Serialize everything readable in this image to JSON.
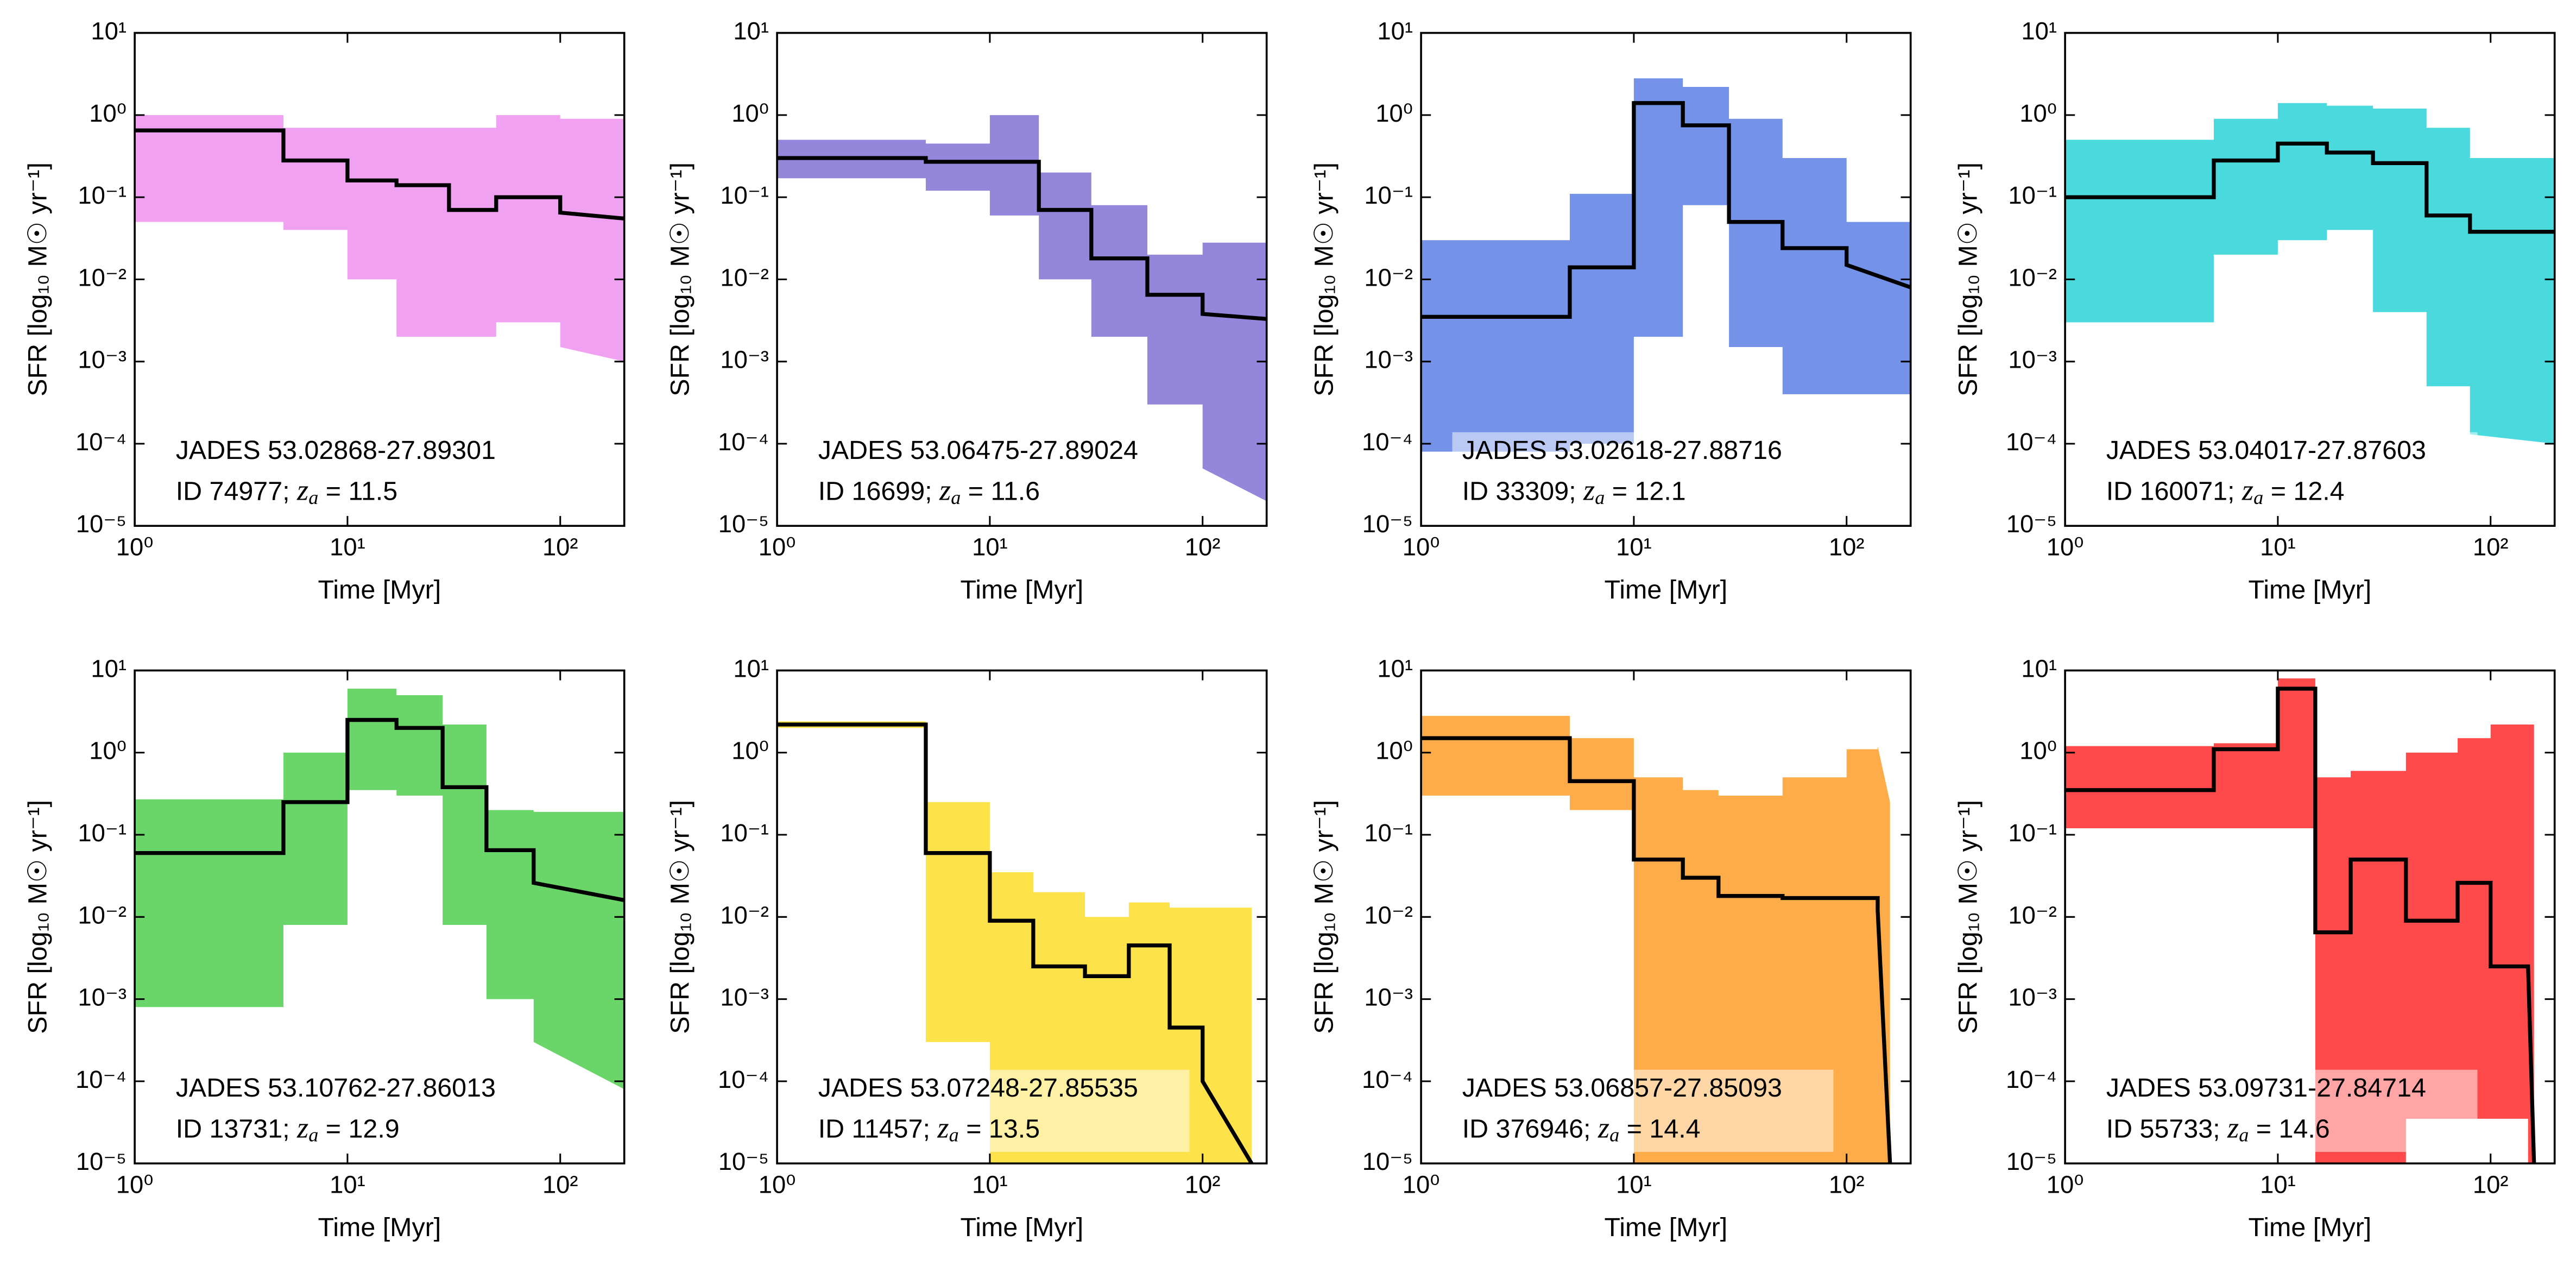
{
  "redshift_symbol": "z",
  "redshift_subscript": "a",
  "redshift_sign": " = ",
  "chart_data": [
    {
      "type": "line",
      "color": "#f09cf0",
      "annotation": [
        "JADES 53.02868-27.89301",
        "ID 74977; "
      ],
      "redshift": 11.5,
      "xlabel": "Time [Myr]",
      "ylabel": "SFR [log₁₀ M☉ yr⁻¹]",
      "log_x": true,
      "log_y": true,
      "xlim": [
        1,
        200
      ],
      "ylim": [
        1e-05,
        10
      ],
      "xticks": [
        {
          "value": 1,
          "label": "10⁰"
        },
        {
          "value": 10,
          "label": "10¹"
        },
        {
          "value": 100,
          "label": "10²"
        }
      ],
      "yticks": [
        {
          "value": 1e-05,
          "label": "10⁻⁵"
        },
        {
          "value": 0.0001,
          "label": "10⁻⁴"
        },
        {
          "value": 0.001,
          "label": "10⁻³"
        },
        {
          "value": 0.01,
          "label": "10⁻²"
        },
        {
          "value": 0.1,
          "label": "10⁻¹"
        },
        {
          "value": 1,
          "label": "10⁰"
        },
        {
          "value": 10,
          "label": "10¹"
        }
      ],
      "x": [
        1,
        5,
        5,
        10,
        10,
        17,
        17,
        30,
        30,
        50,
        50,
        100,
        100,
        200
      ],
      "values": [
        0.65,
        0.65,
        0.28,
        0.28,
        0.16,
        0.16,
        0.14,
        0.14,
        0.07,
        0.07,
        0.1,
        0.1,
        0.065,
        0.055
      ],
      "upper": [
        1,
        1,
        0.7,
        0.7,
        0.7,
        0.7,
        0.7,
        0.7,
        0.7,
        0.7,
        1,
        1,
        0.9,
        0.9
      ],
      "lower": [
        0.05,
        0.05,
        0.04,
        0.04,
        0.01,
        0.01,
        0.002,
        0.002,
        0.002,
        0.002,
        0.003,
        0.003,
        0.0015,
        0.001
      ]
    },
    {
      "type": "line",
      "color": "#8e7fd8",
      "annotation": [
        "JADES 53.06475-27.89024",
        "ID 16699; "
      ],
      "redshift": 11.6,
      "xlabel": "Time [Myr]",
      "ylabel": "SFR [log₁₀ M☉ yr⁻¹]",
      "log_x": true,
      "log_y": true,
      "xlim": [
        1,
        200
      ],
      "ylim": [
        1e-05,
        10
      ],
      "xticks": [
        {
          "value": 1,
          "label": "10⁰"
        },
        {
          "value": 10,
          "label": "10¹"
        },
        {
          "value": 100,
          "label": "10²"
        }
      ],
      "yticks": [
        {
          "value": 1e-05,
          "label": "10⁻⁵"
        },
        {
          "value": 0.0001,
          "label": "10⁻⁴"
        },
        {
          "value": 0.001,
          "label": "10⁻³"
        },
        {
          "value": 0.01,
          "label": "10⁻²"
        },
        {
          "value": 0.1,
          "label": "10⁻¹"
        },
        {
          "value": 1,
          "label": "10⁰"
        },
        {
          "value": 10,
          "label": "10¹"
        }
      ],
      "x": [
        1,
        5,
        5,
        10,
        10,
        17,
        17,
        30,
        30,
        55,
        55,
        100,
        100,
        200
      ],
      "values": [
        0.3,
        0.3,
        0.27,
        0.27,
        0.27,
        0.27,
        0.07,
        0.07,
        0.018,
        0.018,
        0.0065,
        0.0065,
        0.0038,
        0.0033
      ],
      "upper": [
        0.5,
        0.5,
        0.45,
        0.45,
        1,
        1,
        0.2,
        0.2,
        0.08,
        0.08,
        0.02,
        0.02,
        0.028,
        0.028
      ],
      "lower": [
        0.17,
        0.17,
        0.12,
        0.12,
        0.06,
        0.06,
        0.01,
        0.01,
        0.002,
        0.002,
        0.0003,
        0.0003,
        5e-05,
        2e-05
      ]
    },
    {
      "type": "line",
      "color": "#6d8ce6",
      "annotation": [
        "JADES 53.02618-27.88716",
        "ID 33309; "
      ],
      "redshift": 12.1,
      "xlabel": "Time [Myr]",
      "ylabel": "SFR [log₁₀ M☉ yr⁻¹]",
      "log_x": true,
      "log_y": true,
      "xlim": [
        1,
        200
      ],
      "ylim": [
        1e-05,
        10
      ],
      "xticks": [
        {
          "value": 1,
          "label": "10⁰"
        },
        {
          "value": 10,
          "label": "10¹"
        },
        {
          "value": 100,
          "label": "10²"
        }
      ],
      "yticks": [
        {
          "value": 1e-05,
          "label": "10⁻⁵"
        },
        {
          "value": 0.0001,
          "label": "10⁻⁴"
        },
        {
          "value": 0.001,
          "label": "10⁻³"
        },
        {
          "value": 0.01,
          "label": "10⁻²"
        },
        {
          "value": 0.1,
          "label": "10⁻¹"
        },
        {
          "value": 1,
          "label": "10⁰"
        },
        {
          "value": 10,
          "label": "10¹"
        }
      ],
      "x": [
        1,
        5,
        5,
        10,
        10,
        17,
        17,
        28,
        28,
        50,
        50,
        100,
        100,
        200
      ],
      "values": [
        0.0035,
        0.0035,
        0.014,
        0.014,
        1.4,
        1.4,
        0.75,
        0.75,
        0.05,
        0.05,
        0.024,
        0.024,
        0.015,
        0.008
      ],
      "upper": [
        0.03,
        0.03,
        0.11,
        0.11,
        2.8,
        2.8,
        2.2,
        2.2,
        0.9,
        0.9,
        0.3,
        0.3,
        0.05,
        0.05
      ],
      "lower": [
        8e-05,
        8e-05,
        0.0001,
        0.0001,
        0.002,
        0.002,
        0.08,
        0.08,
        0.0015,
        0.0015,
        0.0004,
        0.0004,
        0.0004,
        0.0004
      ]
    },
    {
      "type": "line",
      "color": "#40d8dc",
      "annotation": [
        "JADES 53.04017-27.87603",
        "ID 160071; "
      ],
      "redshift": 12.4,
      "xlabel": "Time [Myr]",
      "ylabel": "SFR [log₁₀ M☉ yr⁻¹]",
      "log_x": true,
      "log_y": true,
      "xlim": [
        1,
        200
      ],
      "ylim": [
        1e-05,
        10
      ],
      "xticks": [
        {
          "value": 1,
          "label": "10⁰"
        },
        {
          "value": 10,
          "label": "10¹"
        },
        {
          "value": 100,
          "label": "10²"
        }
      ],
      "yticks": [
        {
          "value": 1e-05,
          "label": "10⁻⁵"
        },
        {
          "value": 0.0001,
          "label": "10⁻⁴"
        },
        {
          "value": 0.001,
          "label": "10⁻³"
        },
        {
          "value": 0.01,
          "label": "10⁻²"
        },
        {
          "value": 0.1,
          "label": "10⁻¹"
        },
        {
          "value": 1,
          "label": "10⁰"
        },
        {
          "value": 10,
          "label": "10¹"
        }
      ],
      "x": [
        1,
        5,
        5,
        10,
        10,
        17,
        17,
        28,
        28,
        50,
        50,
        80,
        80,
        200
      ],
      "values": [
        0.1,
        0.1,
        0.28,
        0.28,
        0.45,
        0.45,
        0.35,
        0.35,
        0.26,
        0.26,
        0.06,
        0.06,
        0.038,
        0.038
      ],
      "upper": [
        0.5,
        0.5,
        0.9,
        0.9,
        1.4,
        1.4,
        1.3,
        1.3,
        1.2,
        1.2,
        0.7,
        0.7,
        0.3,
        0.3
      ],
      "lower": [
        0.003,
        0.003,
        0.02,
        0.02,
        0.03,
        0.03,
        0.04,
        0.04,
        0.004,
        0.004,
        0.0005,
        0.0005,
        0.00013,
        0.0001
      ]
    },
    {
      "type": "line",
      "color": "#62d462",
      "annotation": [
        "JADES 53.10762-27.86013",
        "ID 13731; "
      ],
      "redshift": 12.9,
      "xlabel": "Time [Myr]",
      "ylabel": "SFR [log₁₀ M☉ yr⁻¹]",
      "log_x": true,
      "log_y": true,
      "xlim": [
        1,
        200
      ],
      "ylim": [
        1e-05,
        10
      ],
      "xticks": [
        {
          "value": 1,
          "label": "10⁰"
        },
        {
          "value": 10,
          "label": "10¹"
        },
        {
          "value": 100,
          "label": "10²"
        }
      ],
      "yticks": [
        {
          "value": 1e-05,
          "label": "10⁻⁵"
        },
        {
          "value": 0.0001,
          "label": "10⁻⁴"
        },
        {
          "value": 0.001,
          "label": "10⁻³"
        },
        {
          "value": 0.01,
          "label": "10⁻²"
        },
        {
          "value": 0.1,
          "label": "10⁻¹"
        },
        {
          "value": 1,
          "label": "10⁰"
        },
        {
          "value": 10,
          "label": "10¹"
        }
      ],
      "x": [
        1,
        5,
        5,
        10,
        10,
        17,
        17,
        28,
        28,
        45,
        45,
        75,
        75,
        200
      ],
      "values": [
        0.06,
        0.06,
        0.25,
        0.25,
        2.5,
        2.5,
        2,
        2,
        0.38,
        0.38,
        0.065,
        0.065,
        0.026,
        0.016
      ],
      "upper": [
        0.27,
        0.27,
        1,
        1,
        6,
        6,
        5,
        5,
        2.2,
        2.2,
        0.2,
        0.2,
        0.19,
        0.19
      ],
      "lower": [
        0.0008,
        0.0008,
        0.008,
        0.008,
        0.35,
        0.35,
        0.3,
        0.3,
        0.008,
        0.008,
        0.001,
        0.001,
        0.0003,
        8e-05
      ]
    },
    {
      "type": "line",
      "color": "#fde040",
      "annotation": [
        "JADES 53.07248-27.85535",
        "ID 11457; "
      ],
      "redshift": 13.5,
      "xlabel": "Time [Myr]",
      "ylabel": "SFR [log₁₀ M☉ yr⁻¹]",
      "log_x": true,
      "log_y": true,
      "xlim": [
        1,
        200
      ],
      "ylim": [
        1e-05,
        10
      ],
      "xticks": [
        {
          "value": 1,
          "label": "10⁰"
        },
        {
          "value": 10,
          "label": "10¹"
        },
        {
          "value": 100,
          "label": "10²"
        }
      ],
      "yticks": [
        {
          "value": 1e-05,
          "label": "10⁻⁵"
        },
        {
          "value": 0.0001,
          "label": "10⁻⁴"
        },
        {
          "value": 0.001,
          "label": "10⁻³"
        },
        {
          "value": 0.01,
          "label": "10⁻²"
        },
        {
          "value": 0.1,
          "label": "10⁻¹"
        },
        {
          "value": 1,
          "label": "10⁰"
        },
        {
          "value": 10,
          "label": "10¹"
        }
      ],
      "x": [
        1,
        5,
        5,
        10,
        10,
        16,
        16,
        28,
        28,
        45,
        45,
        70,
        70,
        100,
        100,
        170
      ],
      "values": [
        2.2,
        2.2,
        0.06,
        0.06,
        0.009,
        0.009,
        0.0025,
        0.0025,
        0.0019,
        0.0019,
        0.0045,
        0.0045,
        0.00045,
        0.00045,
        0.0001,
        1e-05
      ],
      "upper": [
        2.4,
        2.4,
        0.25,
        0.25,
        0.035,
        0.035,
        0.02,
        0.02,
        0.01,
        0.01,
        0.015,
        0.015,
        0.013,
        0.013,
        0.013,
        0.013
      ],
      "lower": [
        2,
        2,
        0.0003,
        0.0003,
        1e-05,
        1e-05,
        1e-05,
        1e-05,
        1e-05,
        1e-05,
        1e-05,
        1e-05,
        1e-05,
        1e-05,
        1e-05,
        1e-05
      ]
    },
    {
      "type": "line",
      "color": "#fea840",
      "annotation": [
        "JADES 53.06857-27.85093",
        "ID 376946; "
      ],
      "redshift": 14.4,
      "xlabel": "Time [Myr]",
      "ylabel": "SFR [log₁₀ M☉ yr⁻¹]",
      "log_x": true,
      "log_y": true,
      "xlim": [
        1,
        200
      ],
      "ylim": [
        1e-05,
        10
      ],
      "xticks": [
        {
          "value": 1,
          "label": "10⁰"
        },
        {
          "value": 10,
          "label": "10¹"
        },
        {
          "value": 100,
          "label": "10²"
        }
      ],
      "yticks": [
        {
          "value": 1e-05,
          "label": "10⁻⁵"
        },
        {
          "value": 0.0001,
          "label": "10⁻⁴"
        },
        {
          "value": 0.001,
          "label": "10⁻³"
        },
        {
          "value": 0.01,
          "label": "10⁻²"
        },
        {
          "value": 0.1,
          "label": "10⁻¹"
        },
        {
          "value": 1,
          "label": "10⁰"
        },
        {
          "value": 10,
          "label": "10¹"
        }
      ],
      "x": [
        1,
        5,
        5,
        10,
        10,
        17,
        17,
        25,
        25,
        50,
        50,
        100,
        100,
        140,
        140,
        160
      ],
      "values": [
        1.5,
        1.5,
        0.45,
        0.45,
        0.05,
        0.05,
        0.03,
        0.03,
        0.018,
        0.018,
        0.017,
        0.017,
        0.017,
        0.017,
        0.012,
        1e-05
      ],
      "upper": [
        2.8,
        2.8,
        1.5,
        1.5,
        0.5,
        0.5,
        0.35,
        0.35,
        0.3,
        0.3,
        0.5,
        0.5,
        1.1,
        1.1,
        1.2,
        0.25
      ],
      "lower": [
        0.3,
        0.3,
        0.2,
        0.2,
        1e-05,
        1e-05,
        1e-05,
        1e-05,
        1e-05,
        1e-05,
        1e-05,
        1e-05,
        1e-05,
        1e-05,
        1e-05,
        1e-05
      ]
    },
    {
      "type": "line",
      "color": "#fe4040",
      "annotation": [
        "JADES 53.09731-27.84714",
        "ID 55733; "
      ],
      "redshift": 14.6,
      "xlabel": "Time [Myr]",
      "ylabel": "SFR [log₁₀ M☉ yr⁻¹]",
      "log_x": true,
      "log_y": true,
      "xlim": [
        1,
        200
      ],
      "ylim": [
        1e-05,
        10
      ],
      "xticks": [
        {
          "value": 1,
          "label": "10⁰"
        },
        {
          "value": 10,
          "label": "10¹"
        },
        {
          "value": 100,
          "label": "10²"
        }
      ],
      "yticks": [
        {
          "value": 1e-05,
          "label": "10⁻⁵"
        },
        {
          "value": 0.0001,
          "label": "10⁻⁴"
        },
        {
          "value": 0.001,
          "label": "10⁻³"
        },
        {
          "value": 0.01,
          "label": "10⁻²"
        },
        {
          "value": 0.1,
          "label": "10⁻¹"
        },
        {
          "value": 1,
          "label": "10⁰"
        },
        {
          "value": 10,
          "label": "10¹"
        }
      ],
      "x": [
        1,
        5,
        5,
        10,
        10,
        15,
        15,
        22,
        22,
        40,
        40,
        70,
        70,
        100,
        100,
        150,
        150,
        160
      ],
      "values": [
        0.35,
        0.35,
        1.1,
        1.1,
        6,
        6,
        0.0065,
        0.0065,
        0.05,
        0.05,
        0.009,
        0.009,
        0.026,
        0.026,
        0.0025,
        0.0025,
        0.0025,
        1e-05
      ],
      "upper": [
        1.2,
        1.2,
        1.3,
        1.3,
        8,
        8,
        0.5,
        0.5,
        0.6,
        0.6,
        1,
        1,
        1.5,
        1.5,
        2.2,
        2.2,
        2.2,
        2.2
      ],
      "lower": [
        0.12,
        0.12,
        0.12,
        0.12,
        0.12,
        0.12,
        1e-05,
        1e-05,
        1e-05,
        1e-05,
        3.5e-05,
        3.5e-05,
        3.5e-05,
        3.5e-05,
        3.5e-05,
        3.5e-05,
        1e-05,
        1e-05
      ]
    }
  ]
}
